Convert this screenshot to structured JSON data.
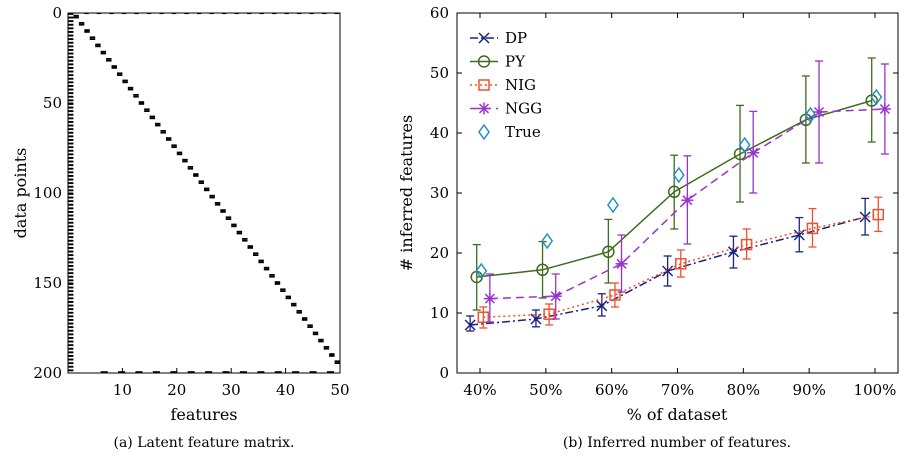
{
  "chart_data": [
    {
      "type": "heatmap",
      "caption": "(a) Latent feature matrix.",
      "xlabel": "features",
      "ylabel": "data points",
      "x_ticks": [
        "10",
        "20",
        "30",
        "40",
        "50"
      ],
      "y_ticks": [
        "0",
        "50",
        "100",
        "150",
        "200"
      ],
      "xlim": [
        0,
        50
      ],
      "ylim": [
        0,
        200
      ],
      "cmap": {
        "on": "#000000",
        "off": "#ffffff"
      },
      "description": "binary matrix"
    },
    {
      "type": "line",
      "caption": "(b) Inferred number of features.",
      "xlabel": "% of dataset",
      "ylabel": "# inferred features",
      "categories": [
        "40%",
        "50%",
        "60%",
        "70%",
        "80%",
        "90%",
        "100%"
      ],
      "y_ticks": [
        "0",
        "10",
        "20",
        "30",
        "40",
        "50",
        "60"
      ],
      "ylim": [
        0,
        60
      ],
      "legend_position": "top-left",
      "series": [
        {
          "name": "DP",
          "color": "#1a237e",
          "marker": "x",
          "dash": "dashdot",
          "offset": -0.15,
          "values": [
            8,
            9,
            11.2,
            17,
            20.2,
            23,
            26
          ],
          "err": [
            [
              7,
              9.5
            ],
            [
              7.7,
              10.5
            ],
            [
              9.5,
              13.2
            ],
            [
              14.5,
              19.5
            ],
            [
              17.5,
              22.8
            ],
            [
              20.2,
              25.9
            ],
            [
              23,
              29.1
            ]
          ]
        },
        {
          "name": "PY",
          "color": "#3f6b1f",
          "marker": "circle",
          "dash": "solid",
          "offset": -0.05,
          "values": [
            16,
            17.2,
            20.2,
            30.2,
            36.5,
            42.2,
            45.4
          ],
          "err": [
            [
              10.5,
              21.4
            ],
            [
              12.5,
              21.9
            ],
            [
              15,
              25.6
            ],
            [
              24,
              36.3
            ],
            [
              28.5,
              44.6
            ],
            [
              35,
              49.5
            ],
            [
              38.5,
              52.5
            ]
          ]
        },
        {
          "name": "NIG",
          "color": "#f0522c",
          "marker": "square",
          "dash": "dotted",
          "offset": 0.05,
          "values": [
            9.3,
            9.8,
            13,
            18.2,
            21.4,
            24.1,
            26.4
          ],
          "err": [
            [
              7.5,
              11
            ],
            [
              8,
              11.5
            ],
            [
              11,
              15
            ],
            [
              16,
              20.5
            ],
            [
              19,
              24
            ],
            [
              21,
              27.4
            ],
            [
              23.6,
              29.3
            ]
          ]
        },
        {
          "name": "NGG",
          "color": "#9933cc",
          "marker": "star",
          "dash": "dashed",
          "offset": 0.15,
          "values": [
            12.4,
            12.8,
            18.2,
            28.8,
            36.7,
            43.5,
            44
          ],
          "err": [
            [
              8.5,
              16.5
            ],
            [
              9,
              16.5
            ],
            [
              13.5,
              23
            ],
            [
              21.5,
              36.2
            ],
            [
              30,
              43.6
            ],
            [
              35,
              52
            ],
            [
              36.5,
              51.5
            ]
          ]
        },
        {
          "name": "True",
          "color": "#1f8fc8",
          "marker": "diamond",
          "dash": "none",
          "offset": 0.02,
          "values": [
            17,
            22,
            28,
            33,
            38,
            43,
            46
          ]
        }
      ]
    }
  ]
}
